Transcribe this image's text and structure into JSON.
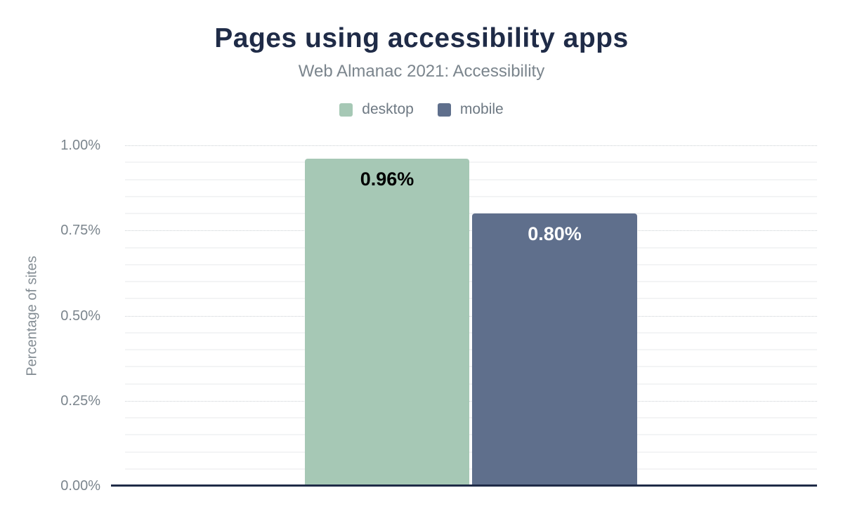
{
  "chart_data": {
    "type": "bar",
    "title": "Pages using accessibility apps",
    "subtitle": "Web Almanac 2021: Accessibility",
    "ylabel": "Percentage of sites",
    "categories": [
      ""
    ],
    "series": [
      {
        "name": "desktop",
        "values": [
          0.96
        ],
        "display_label": "0.96%",
        "color": "#a6c8b5",
        "label_color": "#000000"
      },
      {
        "name": "mobile",
        "values": [
          0.8
        ],
        "display_label": "0.80%",
        "color": "#5f6f8c",
        "label_color": "#ffffff"
      }
    ],
    "ylim": [
      0,
      1.0
    ],
    "yticks": [
      {
        "label": "0.00%",
        "value": 0
      },
      {
        "label": "0.25%",
        "value": 0.25
      },
      {
        "label": "0.50%",
        "value": 0.5
      },
      {
        "label": "0.75%",
        "value": 0.75
      },
      {
        "label": "1.00%",
        "value": 1.0
      }
    ],
    "grid": {
      "major_step": 0.25,
      "minor_step": 0.05,
      "grid_on": true
    },
    "legend_position": "top",
    "colors": {
      "title": "#1f2b47",
      "subtitle": "#7b858d",
      "tick_labels": "#7b858d",
      "axis_line": "#1f2b47",
      "major_gridline": "#c9ced2",
      "minor_gridline": "#f3f4f5"
    }
  }
}
